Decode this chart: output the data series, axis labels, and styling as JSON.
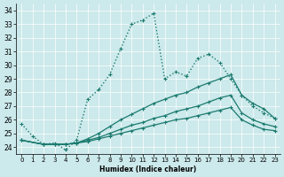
{
  "title": "",
  "xlabel": "Humidex (Indice chaleur)",
  "bg_color": "#cce9eb",
  "grid_color": "#ffffff",
  "line_color": "#1a7a6e",
  "xlim": [
    -0.5,
    23.5
  ],
  "ylim": [
    23.5,
    34.5
  ],
  "yticks": [
    24,
    25,
    26,
    27,
    28,
    29,
    30,
    31,
    32,
    33,
    34
  ],
  "xticks": [
    0,
    1,
    2,
    3,
    4,
    5,
    6,
    7,
    8,
    9,
    10,
    11,
    12,
    13,
    14,
    15,
    16,
    17,
    18,
    19,
    20,
    21,
    22,
    23
  ],
  "series": [
    {
      "x": [
        0,
        1,
        2,
        3,
        4,
        5,
        6,
        7,
        8,
        9,
        10,
        11,
        12,
        13,
        14,
        15,
        16,
        17,
        18,
        19,
        20,
        21,
        22,
        23
      ],
      "y": [
        25.7,
        24.8,
        24.2,
        24.3,
        23.8,
        24.5,
        27.5,
        28.2,
        29.3,
        31.2,
        33.0,
        33.3,
        33.8,
        29.0,
        29.5,
        29.2,
        30.5,
        30.8,
        30.2,
        29.0,
        27.8,
        27.0,
        26.5,
        26.1
      ],
      "linestyle": "dotted",
      "linewidth": 1.0
    },
    {
      "x": [
        0,
        2,
        3,
        4,
        5,
        6,
        7,
        8,
        9,
        10,
        11,
        12,
        13,
        14,
        15,
        16,
        17,
        18,
        19,
        20,
        21,
        22,
        23
      ],
      "y": [
        24.5,
        24.2,
        24.2,
        24.2,
        24.3,
        24.6,
        25.0,
        25.5,
        26.0,
        26.4,
        26.8,
        27.2,
        27.5,
        27.8,
        28.0,
        28.4,
        28.7,
        29.0,
        29.3,
        27.8,
        27.2,
        26.8,
        26.1
      ],
      "linestyle": "solid",
      "linewidth": 0.9
    },
    {
      "x": [
        0,
        2,
        3,
        4,
        5,
        6,
        7,
        8,
        9,
        10,
        11,
        12,
        13,
        14,
        15,
        16,
        17,
        18,
        19,
        20,
        21,
        22,
        23
      ],
      "y": [
        24.5,
        24.2,
        24.2,
        24.2,
        24.3,
        24.5,
        24.7,
        25.0,
        25.3,
        25.6,
        25.8,
        26.1,
        26.3,
        26.6,
        26.8,
        27.0,
        27.3,
        27.6,
        27.8,
        26.5,
        26.0,
        25.7,
        25.5
      ],
      "linestyle": "solid",
      "linewidth": 0.9
    },
    {
      "x": [
        0,
        2,
        3,
        4,
        5,
        6,
        7,
        8,
        9,
        10,
        11,
        12,
        13,
        14,
        15,
        16,
        17,
        18,
        19,
        20,
        21,
        22,
        23
      ],
      "y": [
        24.5,
        24.2,
        24.2,
        24.2,
        24.3,
        24.4,
        24.6,
        24.8,
        25.0,
        25.2,
        25.4,
        25.6,
        25.8,
        26.0,
        26.1,
        26.3,
        26.5,
        26.7,
        26.9,
        26.0,
        25.6,
        25.3,
        25.2
      ],
      "linestyle": "solid",
      "linewidth": 0.9
    }
  ]
}
